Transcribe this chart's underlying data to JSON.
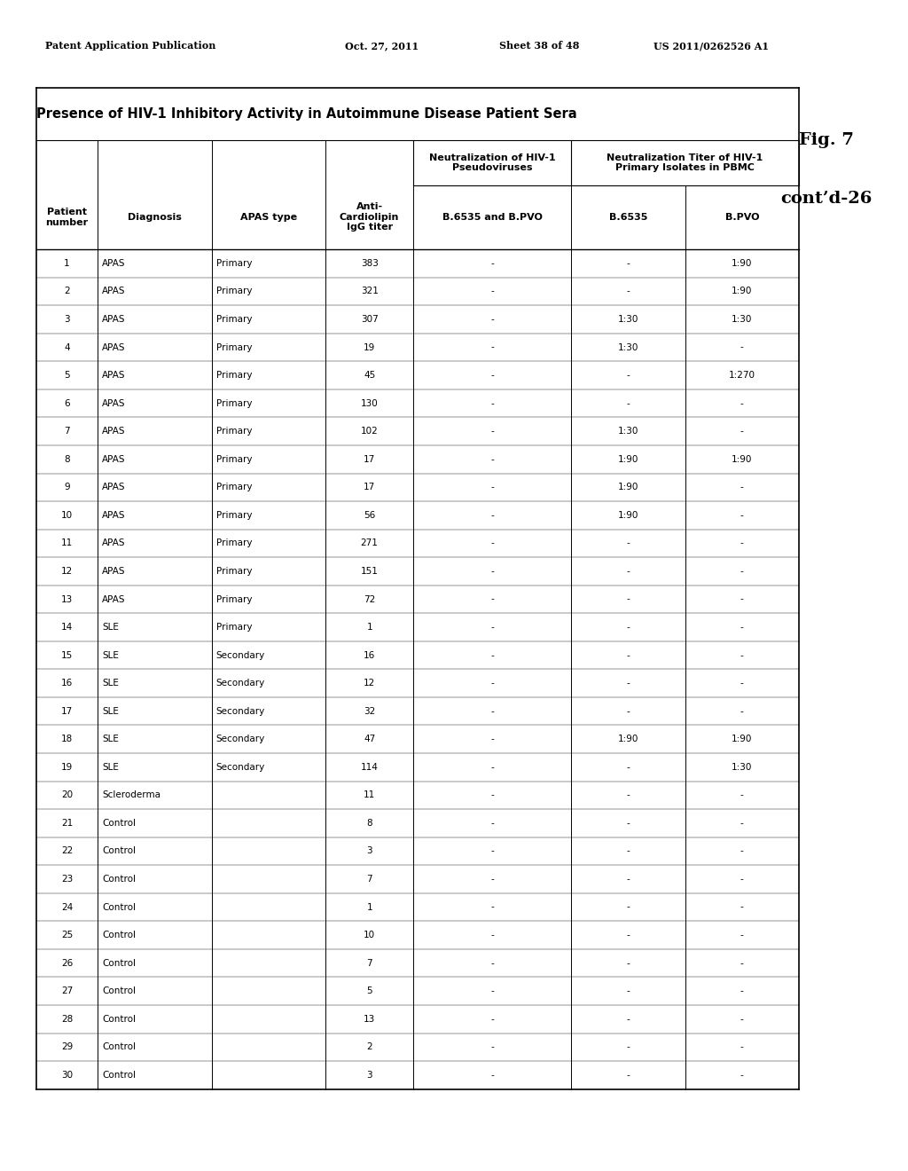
{
  "header_line1": "Patent Application Publication",
  "header_date": "Oct. 27, 2011",
  "header_sheet": "Sheet 38 of 48",
  "header_patent": "US 2011/0262526 A1",
  "main_title": "Presence of HIV-1 Inhibitory Activity in Autoimmune Disease Patient Sera",
  "fig_label": "Fig. 7",
  "fig_cont": "cont’d-26",
  "col_headers": [
    "Patient\nnumber",
    "Diagnosis",
    "APAS type",
    "Anti-\nCardiolipin\nIgG titer",
    "B.6535 and B.PVO",
    "B.6535",
    "B.PVO"
  ],
  "col_group1": "Neutralization of HIV-1\nPseudoviruses",
  "col_group2": "Neutralization Titer of HIV-1\nPrimary Isolates in PBMC",
  "rows": [
    [
      "1",
      "APAS",
      "Primary",
      "383",
      "-",
      "-",
      "1:90"
    ],
    [
      "2",
      "APAS",
      "Primary",
      "321",
      "-",
      "-",
      "1:90"
    ],
    [
      "3",
      "APAS",
      "Primary",
      "307",
      "-",
      "1:30",
      "1:30"
    ],
    [
      "4",
      "APAS",
      "Primary",
      "19",
      "-",
      "1:30",
      "-"
    ],
    [
      "5",
      "APAS",
      "Primary",
      "45",
      "-",
      "-",
      "1:270"
    ],
    [
      "6",
      "APAS",
      "Primary",
      "130",
      "-",
      "-",
      "-"
    ],
    [
      "7",
      "APAS",
      "Primary",
      "102",
      "-",
      "1:30",
      "-"
    ],
    [
      "8",
      "APAS",
      "Primary",
      "17",
      "-",
      "1:90",
      "1:90"
    ],
    [
      "9",
      "APAS",
      "Primary",
      "17",
      "-",
      "1:90",
      "-"
    ],
    [
      "10",
      "APAS",
      "Primary",
      "56",
      "-",
      "1:90",
      "-"
    ],
    [
      "11",
      "APAS",
      "Primary",
      "271",
      "-",
      "-",
      "-"
    ],
    [
      "12",
      "APAS",
      "Primary",
      "151",
      "-",
      "-",
      "-"
    ],
    [
      "13",
      "APAS",
      "Primary",
      "72",
      "-",
      "-",
      "-"
    ],
    [
      "14",
      "SLE",
      "Primary",
      "1",
      "-",
      "-",
      "-"
    ],
    [
      "15",
      "SLE",
      "Secondary",
      "16",
      "-",
      "-",
      "-"
    ],
    [
      "16",
      "SLE",
      "Secondary",
      "12",
      "-",
      "-",
      "-"
    ],
    [
      "17",
      "SLE",
      "Secondary",
      "32",
      "-",
      "-",
      "-"
    ],
    [
      "18",
      "SLE",
      "Secondary",
      "47",
      "-",
      "1:90",
      "1:90"
    ],
    [
      "19",
      "SLE",
      "Secondary",
      "114",
      "-",
      "-",
      "1:30"
    ],
    [
      "20",
      "Scleroderma",
      "",
      "11",
      "-",
      "-",
      "-"
    ],
    [
      "21",
      "Control",
      "",
      "8",
      "-",
      "-",
      "-"
    ],
    [
      "22",
      "Control",
      "",
      "3",
      "-",
      "-",
      "-"
    ],
    [
      "23",
      "Control",
      "",
      "7",
      "-",
      "-",
      "-"
    ],
    [
      "24",
      "Control",
      "",
      "1",
      "-",
      "-",
      "-"
    ],
    [
      "25",
      "Control",
      "",
      "10",
      "-",
      "-",
      "-"
    ],
    [
      "26",
      "Control",
      "",
      "7",
      "-",
      "-",
      "-"
    ],
    [
      "27",
      "Control",
      "",
      "5",
      "-",
      "-",
      "-"
    ],
    [
      "28",
      "Control",
      "",
      "13",
      "-",
      "-",
      "-"
    ],
    [
      "29",
      "Control",
      "",
      "2",
      "-",
      "-",
      "-"
    ],
    [
      "30",
      "Control",
      "",
      "3",
      "-",
      "-",
      "-"
    ]
  ],
  "bg_color": "#ffffff",
  "text_color": "#000000",
  "font_size_header": 8.5,
  "font_size_table": 7.5,
  "font_size_title": 10.5,
  "font_size_main_header": 8.0,
  "font_size_fig": 14
}
